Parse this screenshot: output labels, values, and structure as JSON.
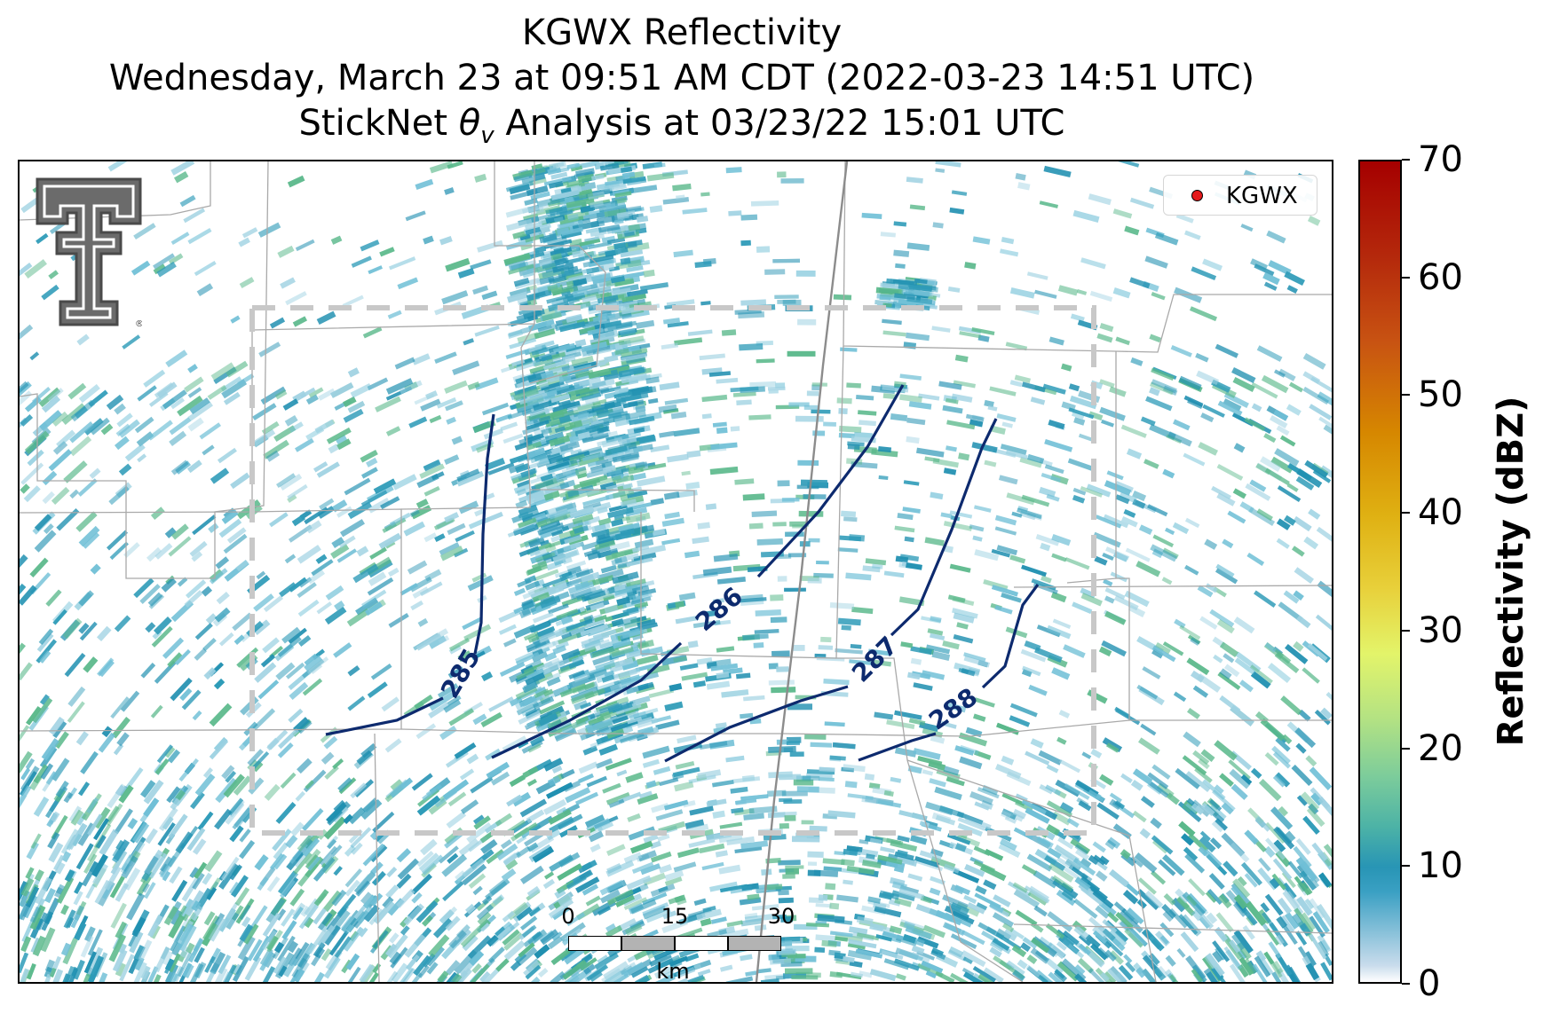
{
  "title": {
    "line1": "KGWX Reflectivity",
    "line2": "Wednesday, March 23 at 09:51 AM CDT (2022-03-23 14:51 UTC)",
    "line3_prefix": "StickNet ",
    "line3_symbol": "θ",
    "line3_subscript": "v",
    "line3_suffix": " Analysis at 03/23/22 15:01 UTC"
  },
  "legend": {
    "label": "KGWX",
    "marker_color": "#e41a1c"
  },
  "colorbar": {
    "title": "Reflectivity (dBZ)",
    "ticks": [
      "0",
      "10",
      "20",
      "30",
      "40",
      "50",
      "60",
      "70"
    ],
    "range": [
      0,
      70
    ]
  },
  "scale_bar": {
    "ticks": [
      "0",
      "15",
      "30"
    ],
    "unit": "km"
  },
  "contours": {
    "color": "#0d2a6e",
    "labels": [
      "285",
      "286",
      "287",
      "288"
    ]
  },
  "logo": {
    "name": "texas-tech-double-t-logo",
    "mark": "®"
  },
  "colors": {
    "echo_primary": "#2e9bb8",
    "echo_light": "#9fd2e2",
    "echo_green": "#59b88a",
    "county_lines": "#a9a9a9",
    "dashed_box": "#c8c8c8",
    "highway": "#8c8c8c"
  }
}
